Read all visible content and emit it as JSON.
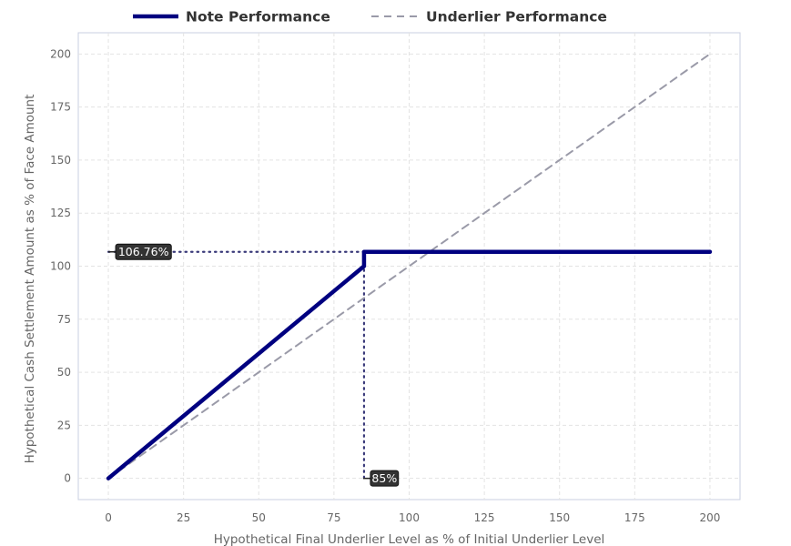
{
  "chart_data": {
    "type": "line",
    "xlabel": "Hypothetical Final Underlier Level as % of Initial Underlier Level",
    "ylabel": "Hypothetical Cash Settlement Amount as % of Face Amount",
    "xlim": [
      -10,
      210
    ],
    "ylim": [
      -10,
      210
    ],
    "x_ticks": [
      0,
      25,
      50,
      75,
      100,
      125,
      150,
      175,
      200
    ],
    "y_ticks": [
      0,
      25,
      50,
      75,
      100,
      125,
      150,
      175,
      200
    ],
    "grid": true,
    "legend_position": "top-center",
    "series": [
      {
        "name": "Note Performance",
        "color": "#000080",
        "style": "solid",
        "x": [
          0,
          85,
          85,
          200
        ],
        "y": [
          0,
          100,
          106.76,
          106.76
        ]
      },
      {
        "name": "Underlier Performance",
        "color": "#9a9aa8",
        "style": "dashed",
        "x": [
          0,
          200
        ],
        "y": [
          0,
          200
        ]
      }
    ],
    "annotations": [
      {
        "label": "106.76%",
        "axis": "y",
        "value": 106.76,
        "to_x": 85
      },
      {
        "label": "85%",
        "axis": "x",
        "value": 85,
        "to_y": 106.76
      }
    ]
  }
}
